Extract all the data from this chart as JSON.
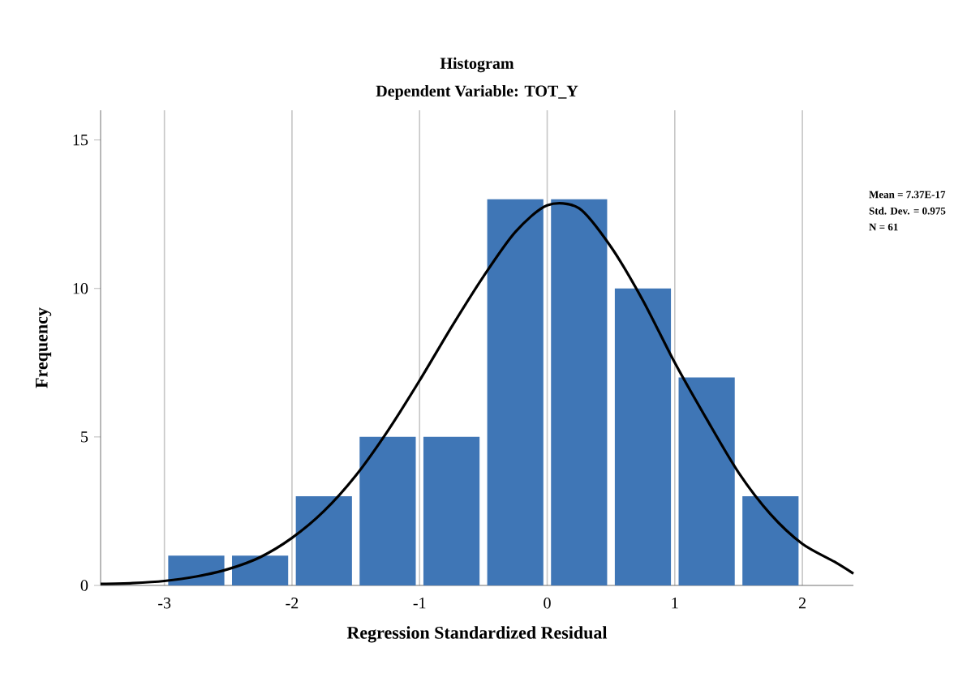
{
  "chart_data": {
    "type": "histogram",
    "title": "Histogram",
    "subtitle": "Dependent Variable: TOT_Y",
    "xlabel": "Regression Standardized Residual",
    "ylabel": "Frequency",
    "bins": [
      -3,
      -2.5,
      -2,
      -1.5,
      -1,
      -0.5,
      0,
      0.5,
      1,
      1.5,
      2
    ],
    "values": [
      1,
      1,
      3,
      5,
      5,
      13,
      13,
      10,
      7,
      3
    ],
    "color": "#3f76b6",
    "series": [
      {
        "type": "line",
        "color": "#000000",
        "x": [
          -3.5,
          -3.25,
          -3,
          -2.75,
          -2.5,
          -2.25,
          -2,
          -1.75,
          -1.5,
          -1.25,
          -1,
          -0.75,
          -0.5,
          -0.25,
          0,
          0.25,
          0.5,
          0.75,
          1,
          1.25,
          1.5,
          1.75,
          2,
          2.25,
          2.4
        ],
        "values": [
          0.05,
          0.08,
          0.15,
          0.3,
          0.55,
          0.95,
          1.6,
          2.5,
          3.7,
          5.2,
          6.9,
          8.7,
          10.4,
          11.9,
          12.8,
          12.7,
          11.4,
          9.6,
          7.5,
          5.6,
          3.8,
          2.4,
          1.4,
          0.8,
          0.4
        ]
      }
    ],
    "xlim": [
      -3.5,
      2.4
    ],
    "ylim": [
      0,
      16
    ],
    "xticks": [
      -3,
      -2,
      -1,
      0,
      1,
      2
    ],
    "yticks": [
      0,
      5,
      10,
      15
    ],
    "grid": "x",
    "annotations": [
      "Mean = 7.37E-17",
      "Std. Dev. = 0.975",
      "N = 61"
    ]
  }
}
